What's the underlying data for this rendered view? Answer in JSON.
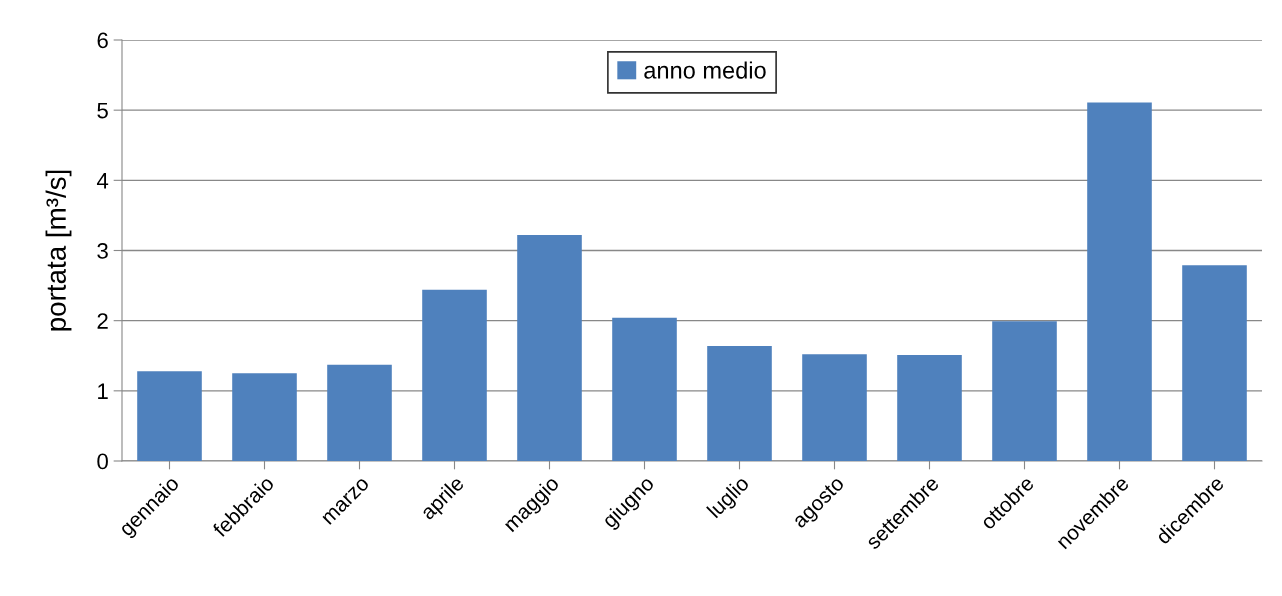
{
  "chart_data": {
    "type": "bar",
    "ylabel": "portata [m³/s]",
    "categories": [
      "gennaio",
      "febbraio",
      "marzo",
      "aprile",
      "maggio",
      "giugno",
      "luglio",
      "agosto",
      "settembre",
      "ottobre",
      "novembre",
      "dicembre"
    ],
    "series": [
      {
        "name": "anno medio",
        "color": "#4f81bd",
        "values": [
          1.28,
          1.25,
          1.37,
          2.44,
          3.22,
          2.04,
          1.64,
          1.52,
          1.51,
          1.99,
          5.11,
          2.79
        ]
      }
    ],
    "ylim": [
      0,
      6
    ],
    "yticks": [
      0,
      1,
      2,
      3,
      4,
      5,
      6
    ],
    "grid": "y",
    "legend": "top"
  }
}
